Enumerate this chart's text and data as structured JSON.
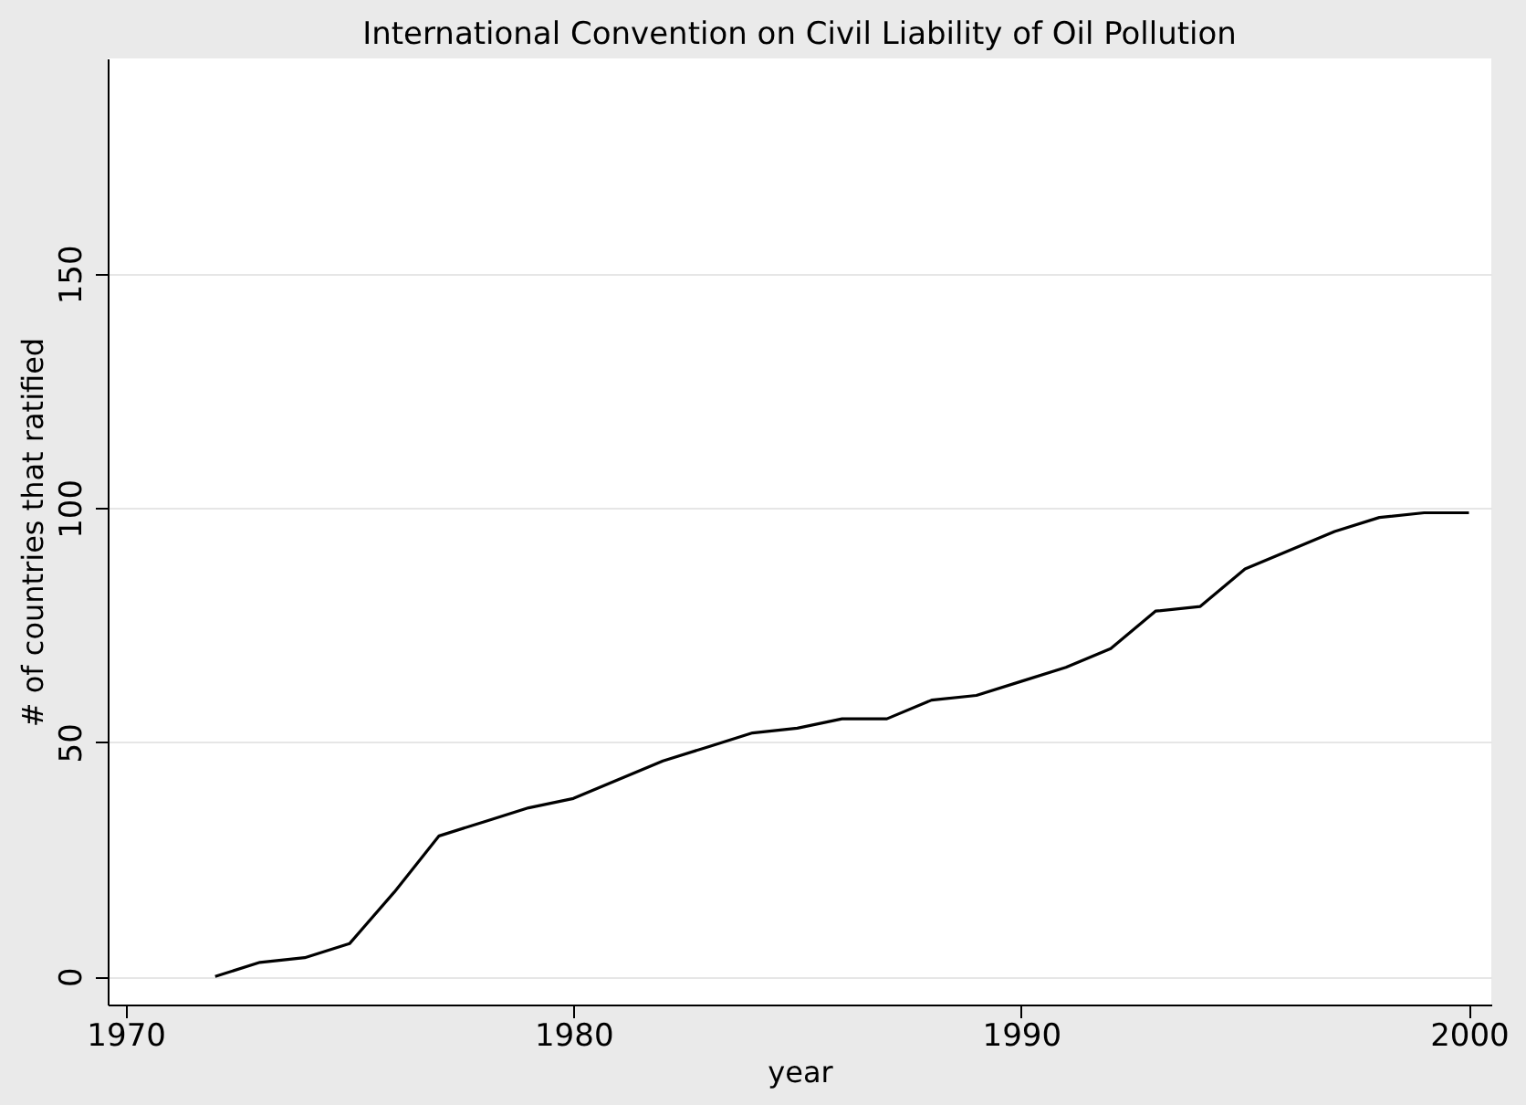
{
  "chart_data": {
    "type": "line",
    "title": "International Convention on Civil Liability of Oil Pollution",
    "xlabel": "year",
    "ylabel": "# of countries that ratified",
    "x": [
      1972,
      1973,
      1974,
      1975,
      1976,
      1977,
      1978,
      1979,
      1980,
      1981,
      1982,
      1983,
      1984,
      1985,
      1986,
      1987,
      1988,
      1989,
      1990,
      1991,
      1992,
      1993,
      1994,
      1995,
      1996,
      1997,
      1998,
      1999,
      2000
    ],
    "series": [
      {
        "color": "#000000",
        "values": [
          0,
          3,
          4,
          7,
          18,
          30,
          33,
          36,
          38,
          42,
          46,
          49,
          52,
          53,
          55,
          55,
          59,
          60,
          63,
          66,
          70,
          78,
          79,
          87,
          91,
          95,
          98,
          99,
          99
        ]
      }
    ],
    "xlim": [
      1969.6,
      2000.5
    ],
    "xticks": [
      1970,
      1980,
      1990,
      2000
    ],
    "ylim": [
      -6,
      196
    ],
    "yticks": [
      0,
      50,
      100,
      150
    ],
    "grid": "y",
    "legend": false,
    "marker": "none",
    "line_style": "solid"
  }
}
